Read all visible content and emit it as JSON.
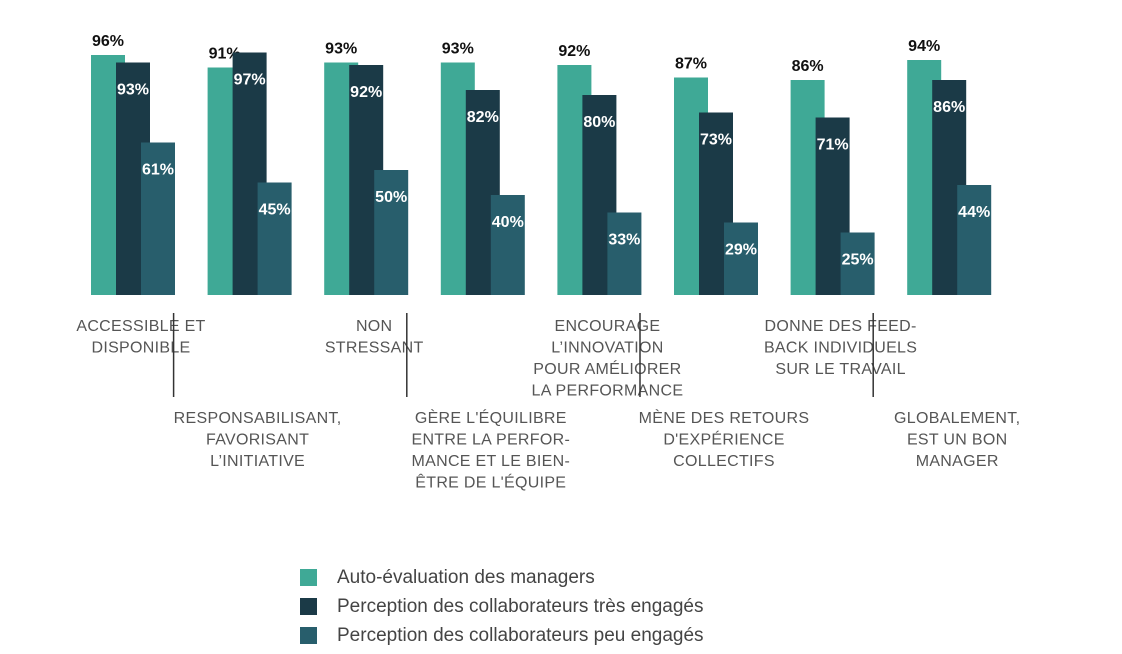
{
  "chart_data": {
    "type": "bar",
    "categories": [
      [
        "ACCESSIBLE ET",
        "DISPONIBLE"
      ],
      [
        "RESPONSABILISANT,",
        "FAVORISANT",
        "L’INITIATIVE"
      ],
      [
        "NON",
        "STRESSANT"
      ],
      [
        "GÈRE L'ÉQUILIBRE",
        "ENTRE LA PERFOR-",
        "MANCE ET LE BIEN-",
        "ÊTRE DE L'ÉQUIPE"
      ],
      [
        "ENCOURAGE",
        "L’INNOVATION",
        "POUR AMÉLIORER",
        "LA PERFORMANCE"
      ],
      [
        "MÈNE DES RETOURS",
        "D'EXPÉRIENCE",
        "COLLECTIFS"
      ],
      [
        "DONNE DES FEED-",
        "BACK INDIVIDUELS",
        "SUR LE TRAVAIL"
      ],
      [
        "GLOBALEMENT,",
        "EST UN BON",
        "MANAGER"
      ]
    ],
    "series": [
      {
        "name": "Auto-évaluation des managers",
        "color": "#3fa996",
        "values": [
          96,
          91,
          93,
          93,
          92,
          87,
          86,
          94
        ]
      },
      {
        "name": "Perception des collaborateurs très engagés",
        "color": "#1b3a47",
        "values": [
          93,
          97,
          92,
          82,
          80,
          73,
          71,
          86
        ]
      },
      {
        "name": "Perception des collaborateurs peu engagés",
        "color": "#285e6c",
        "values": [
          61,
          45,
          50,
          40,
          33,
          29,
          25,
          44
        ]
      }
    ],
    "value_suffix": "%",
    "ylim": [
      0,
      100
    ],
    "grid": false,
    "legend_position": "bottom",
    "title": "",
    "xlabel": "",
    "ylabel": ""
  }
}
